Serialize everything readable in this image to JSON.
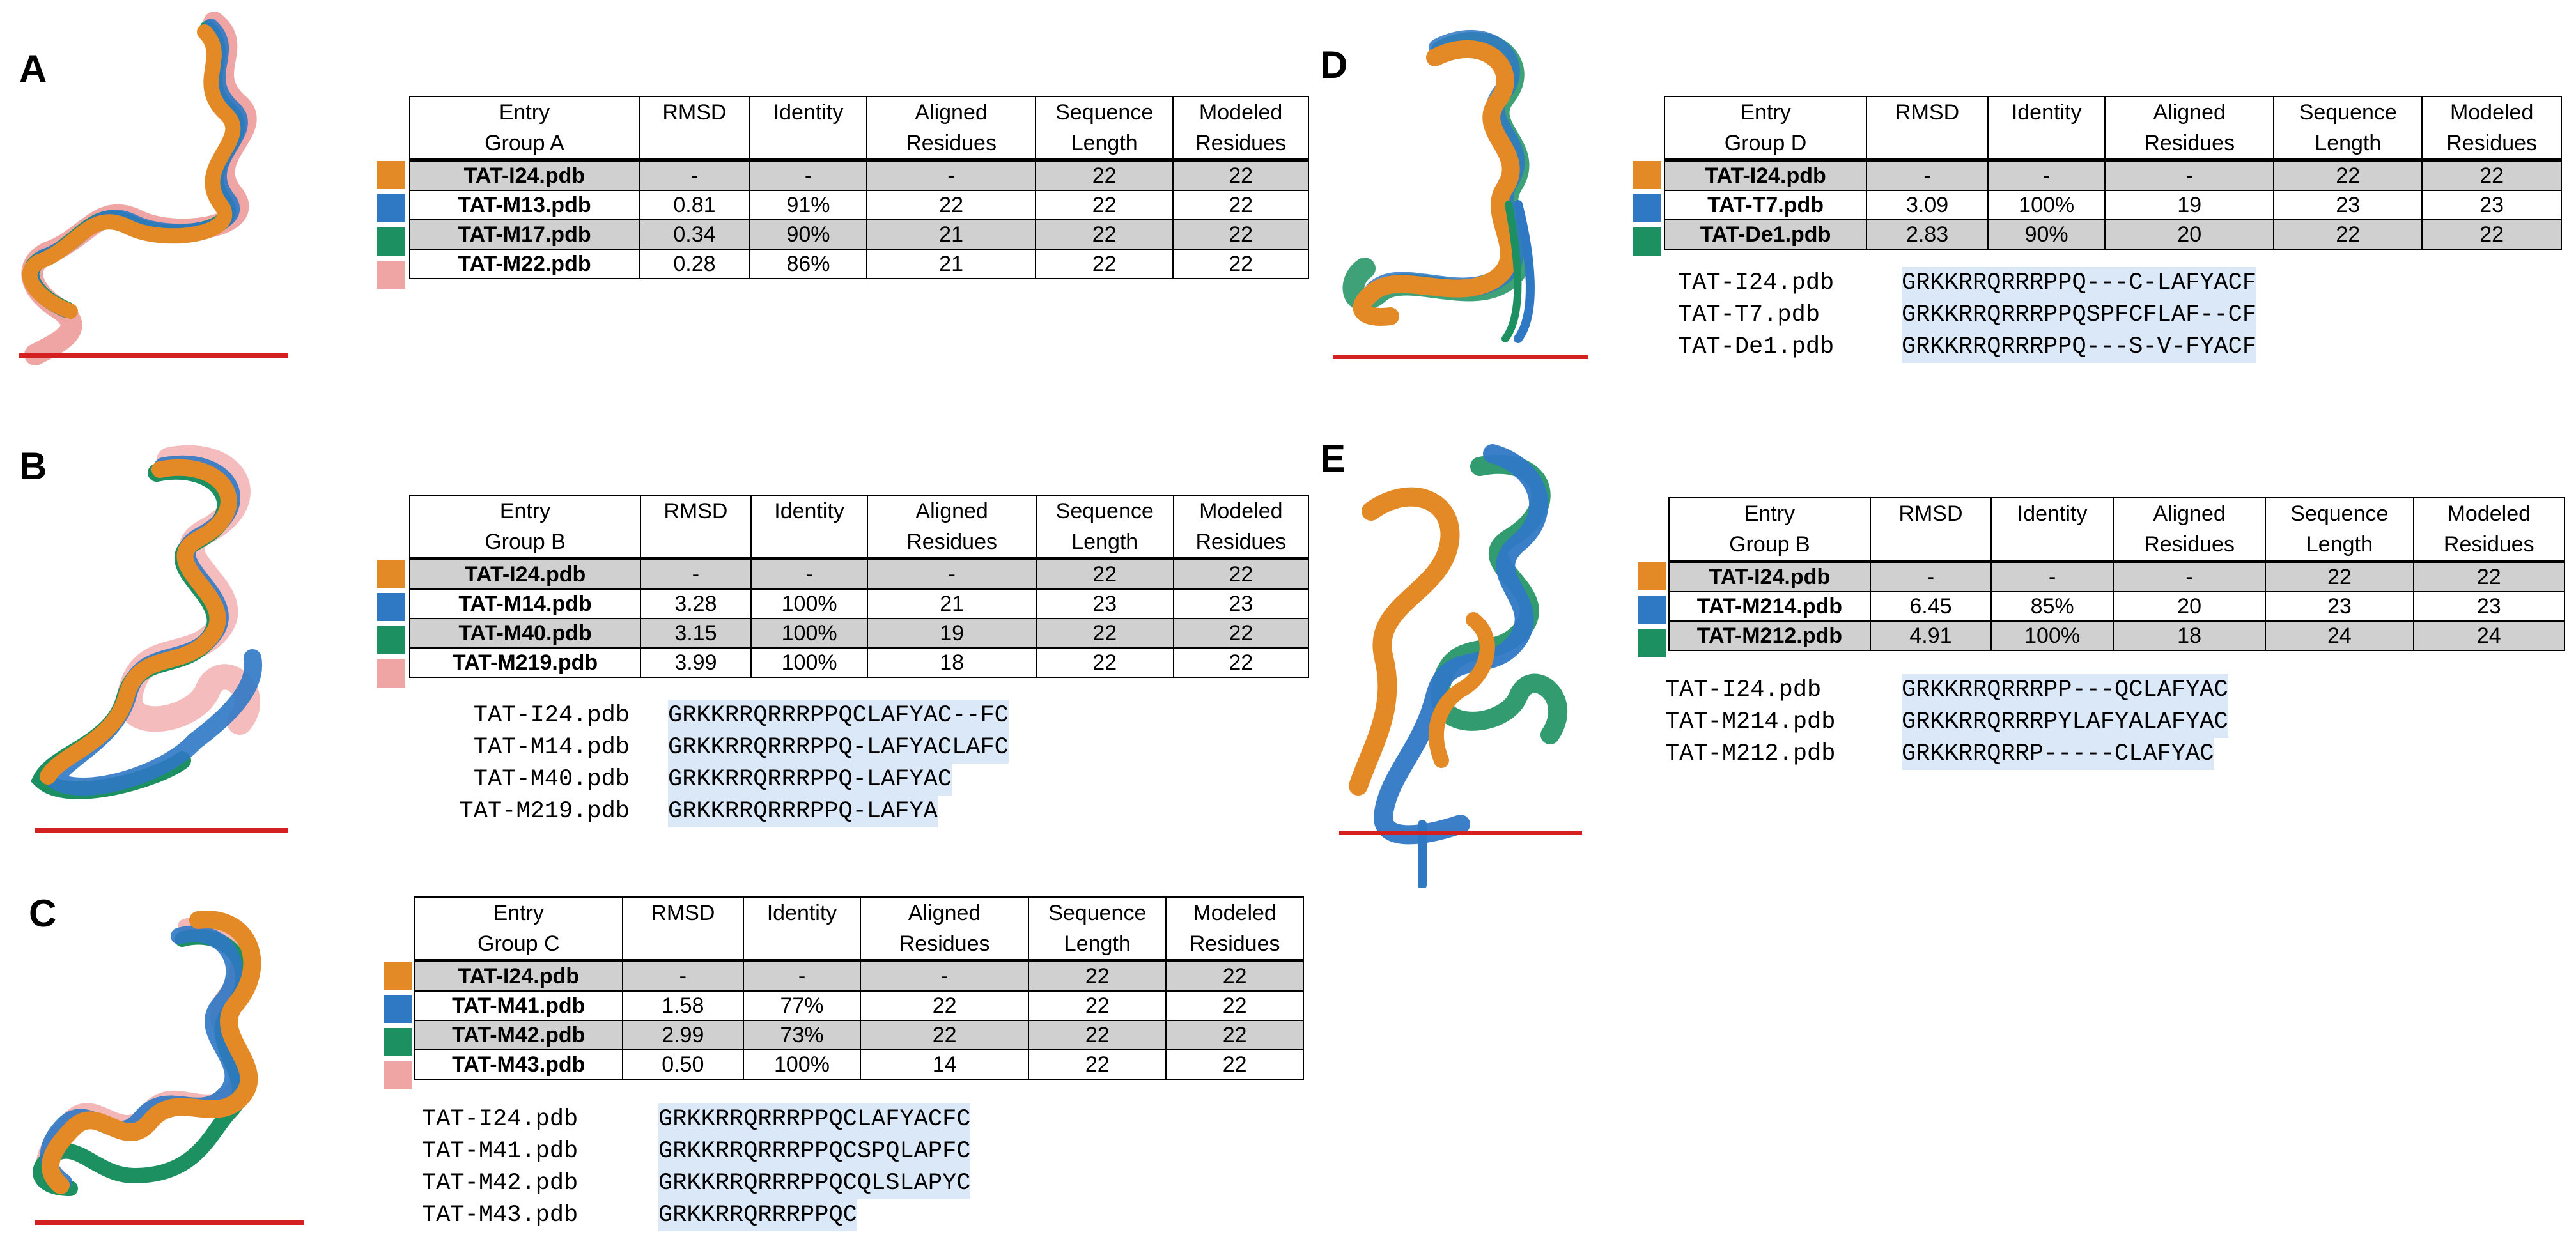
{
  "colors": {
    "orange": "#e38a26",
    "blue": "#2f78c4",
    "green": "#1c9060",
    "pink": "#f0a5a5",
    "scalebar": "#d42020",
    "rowshade": "#d0d0d0",
    "seqhighlight": "#dbe8f7"
  },
  "header": {
    "entry_line1": "Entry",
    "rmsd": "RMSD",
    "identity": "Identity",
    "aligned1": "Aligned",
    "aligned2": "Residues",
    "seq1": "Sequence",
    "seq2": "Length",
    "mod1": "Modeled",
    "mod2": "Residues"
  },
  "panels": {
    "A": {
      "label": "A",
      "group": "Group A",
      "rows": [
        {
          "entry": "TAT-I24.pdb",
          "rmsd": "-",
          "identity": "-",
          "aligned": "-",
          "seq_len": "22",
          "modeled": "22",
          "color": "orange"
        },
        {
          "entry": "TAT-M13.pdb",
          "rmsd": "0.81",
          "identity": "91%",
          "aligned": "22",
          "seq_len": "22",
          "modeled": "22",
          "color": "blue"
        },
        {
          "entry": "TAT-M17.pdb",
          "rmsd": "0.34",
          "identity": "90%",
          "aligned": "21",
          "seq_len": "22",
          "modeled": "22",
          "color": "green"
        },
        {
          "entry": "TAT-M22.pdb",
          "rmsd": "0.28",
          "identity": "86%",
          "aligned": "21",
          "seq_len": "22",
          "modeled": "22",
          "color": "pink"
        }
      ]
    },
    "B": {
      "label": "B",
      "group": "Group B",
      "rows": [
        {
          "entry": "TAT-I24.pdb",
          "rmsd": "-",
          "identity": "-",
          "aligned": "-",
          "seq_len": "22",
          "modeled": "22",
          "color": "orange"
        },
        {
          "entry": "TAT-M14.pdb",
          "rmsd": "3.28",
          "identity": "100%",
          "aligned": "21",
          "seq_len": "23",
          "modeled": "23",
          "color": "blue"
        },
        {
          "entry": "TAT-M40.pdb",
          "rmsd": "3.15",
          "identity": "100%",
          "aligned": "19",
          "seq_len": "22",
          "modeled": "22",
          "color": "green"
        },
        {
          "entry": "TAT-M219.pdb",
          "rmsd": "3.99",
          "identity": "100%",
          "aligned": "18",
          "seq_len": "22",
          "modeled": "22",
          "color": "pink"
        }
      ],
      "alignment": [
        {
          "name": "TAT-I24.pdb",
          "seq": "GRKKRRQRRRPPQCLAFYAC--FC"
        },
        {
          "name": "TAT-M14.pdb",
          "seq": "GRKKRRQRRRPPQ-LAFYACLAFC"
        },
        {
          "name": "TAT-M40.pdb",
          "seq": "GRKKRRQRRRPPQ-LAFYAC"
        },
        {
          "name": "TAT-M219.pdb",
          "seq": "GRKKRRQRRRPPQ-LAFYA"
        }
      ]
    },
    "C": {
      "label": "C",
      "group": "Group C",
      "rows": [
        {
          "entry": "TAT-I24.pdb",
          "rmsd": "-",
          "identity": "-",
          "aligned": "-",
          "seq_len": "22",
          "modeled": "22",
          "color": "orange"
        },
        {
          "entry": "TAT-M41.pdb",
          "rmsd": "1.58",
          "identity": "77%",
          "aligned": "22",
          "seq_len": "22",
          "modeled": "22",
          "color": "blue"
        },
        {
          "entry": "TAT-M42.pdb",
          "rmsd": "2.99",
          "identity": "73%",
          "aligned": "22",
          "seq_len": "22",
          "modeled": "22",
          "color": "green"
        },
        {
          "entry": "TAT-M43.pdb",
          "rmsd": "0.50",
          "identity": "100%",
          "aligned": "14",
          "seq_len": "22",
          "modeled": "22",
          "color": "pink"
        }
      ],
      "alignment": [
        {
          "name": "TAT-I24.pdb",
          "seq": "GRKKRRQRRRPPQCLAFYACFC"
        },
        {
          "name": "TAT-M41.pdb",
          "seq": "GRKKRRQRRRPPQCSPQLAPFC"
        },
        {
          "name": "TAT-M42.pdb",
          "seq": "GRKKRRQRRRPPQCQLSLAPYC"
        },
        {
          "name": "TAT-M43.pdb",
          "seq": "GRKKRRQRRRPPQC"
        }
      ]
    },
    "D": {
      "label": "D",
      "group": "Group D",
      "rows": [
        {
          "entry": "TAT-I24.pdb",
          "rmsd": "-",
          "identity": "-",
          "aligned": "-",
          "seq_len": "22",
          "modeled": "22",
          "color": "orange"
        },
        {
          "entry": "TAT-T7.pdb",
          "rmsd": "3.09",
          "identity": "100%",
          "aligned": "19",
          "seq_len": "23",
          "modeled": "23",
          "color": "blue"
        },
        {
          "entry": "TAT-De1.pdb",
          "rmsd": "2.83",
          "identity": "90%",
          "aligned": "20",
          "seq_len": "22",
          "modeled": "22",
          "color": "green"
        }
      ],
      "alignment": [
        {
          "name": "TAT-I24.pdb",
          "seq": "GRKKRRQRRRPPQ---C-LAFYACF"
        },
        {
          "name": "TAT-T7.pdb",
          "seq": "GRKKRRQRRRPPQSPFCFLAF--CF"
        },
        {
          "name": "TAT-De1.pdb",
          "seq": "GRKKRRQRRRPPQ---S-V-FYACF"
        }
      ]
    },
    "E": {
      "label": "E",
      "group": "Group B",
      "rows": [
        {
          "entry": "TAT-I24.pdb",
          "rmsd": "-",
          "identity": "-",
          "aligned": "-",
          "seq_len": "22",
          "modeled": "22",
          "color": "orange"
        },
        {
          "entry": "TAT-M214.pdb",
          "rmsd": "6.45",
          "identity": "85%",
          "aligned": "20",
          "seq_len": "23",
          "modeled": "23",
          "color": "blue"
        },
        {
          "entry": "TAT-M212.pdb",
          "rmsd": "4.91",
          "identity": "100%",
          "aligned": "18",
          "seq_len": "24",
          "modeled": "24",
          "color": "green"
        }
      ],
      "alignment": [
        {
          "name": "TAT-I24.pdb",
          "seq": "GRKKRRQRRRPP---QCLAFYAC"
        },
        {
          "name": "TAT-M214.pdb",
          "seq": "GRKKRRQRRRPYLAFYALAFYAC"
        },
        {
          "name": "TAT-M212.pdb",
          "seq": "GRKKRRQRRP-----CLAFYAC"
        }
      ]
    }
  }
}
